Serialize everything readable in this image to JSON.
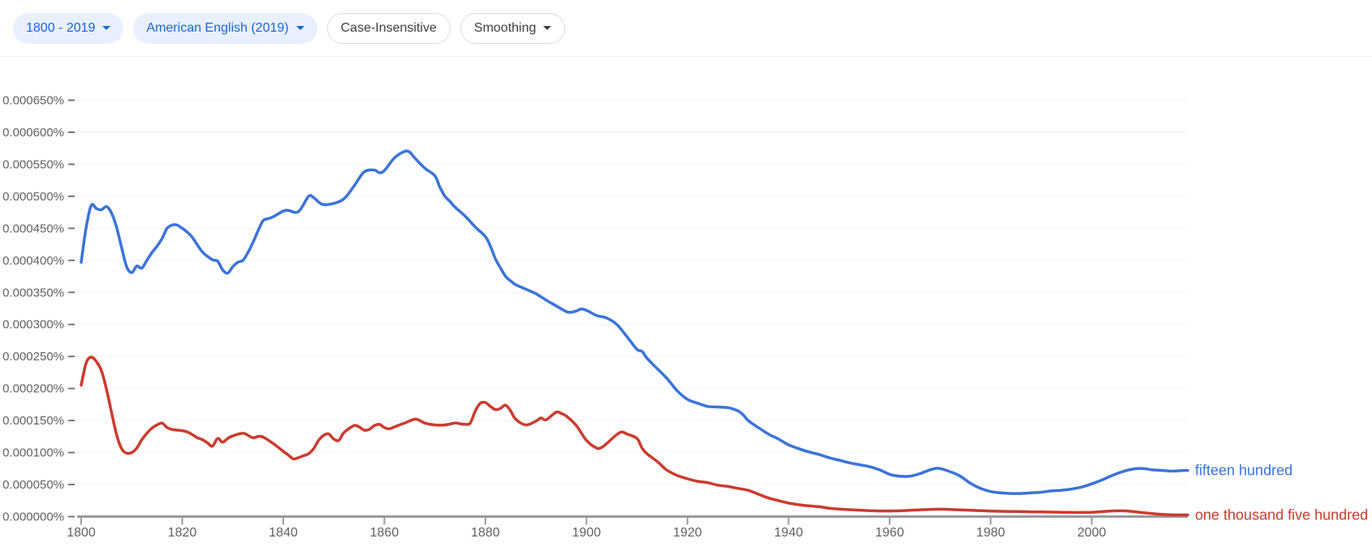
{
  "toolbar": {
    "year_range": {
      "label": "1800 - 2019",
      "has_dropdown": true
    },
    "corpus": {
      "label": "American English (2019)",
      "has_dropdown": true
    },
    "case_sensitivity": {
      "label": "Case-Insensitive",
      "has_dropdown": false
    },
    "smoothing": {
      "label": "Smoothing",
      "has_dropdown": true
    }
  },
  "colors": {
    "series_blue": "#3b73d9",
    "series_red": "#cc3b2e",
    "axis": "#9a9a9a",
    "tick_label": "#616161",
    "gridline": "#f2f2f2",
    "chip_filled_bg": "#e8f0fe",
    "chip_filled_text": "#1967d2",
    "chip_outline": "#dadce0"
  },
  "chart_data": {
    "type": "line",
    "title": "",
    "xlabel": "",
    "ylabel": "",
    "grid": true,
    "legend_position": "line-end-labels-right",
    "x_range": [
      1800,
      2019
    ],
    "x_ticks": [
      1800,
      1820,
      1840,
      1860,
      1880,
      1900,
      1920,
      1940,
      1960,
      1980,
      2000
    ],
    "y_range_percent": [
      0,
      0.00065
    ],
    "y_tick_step_percent": 5e-05,
    "y_tick_labels_bottom_to_top": [
      "0.000000%",
      "0.000050%",
      "0.000100%",
      "0.000150%",
      "0.000200%",
      "0.000250%",
      "0.000300%",
      "0.000350%",
      "0.000400%",
      "0.000450%",
      "0.000500%",
      "0.000550%",
      "0.000600%",
      "0.000650%"
    ],
    "value_unit": "millionths of a percent (value * 1e-6 %)",
    "series": [
      {
        "name": "fifteen hundred",
        "color": "#3b73d9",
        "points": [
          [
            1800,
            397
          ],
          [
            1801,
            452
          ],
          [
            1802,
            486
          ],
          [
            1803,
            481
          ],
          [
            1804,
            479
          ],
          [
            1805,
            484
          ],
          [
            1806,
            474
          ],
          [
            1807,
            452
          ],
          [
            1808,
            420
          ],
          [
            1809,
            390
          ],
          [
            1810,
            381
          ],
          [
            1811,
            391
          ],
          [
            1812,
            388
          ],
          [
            1813,
            400
          ],
          [
            1814,
            412
          ],
          [
            1815,
            422
          ],
          [
            1816,
            434
          ],
          [
            1817,
            450
          ],
          [
            1818,
            455
          ],
          [
            1819,
            455
          ],
          [
            1820,
            450
          ],
          [
            1821,
            444
          ],
          [
            1822,
            436
          ],
          [
            1824,
            413
          ],
          [
            1826,
            401
          ],
          [
            1827,
            399
          ],
          [
            1828,
            385
          ],
          [
            1829,
            380
          ],
          [
            1830,
            390
          ],
          [
            1831,
            397
          ],
          [
            1832,
            400
          ],
          [
            1833,
            412
          ],
          [
            1834,
            428
          ],
          [
            1835,
            446
          ],
          [
            1836,
            462
          ],
          [
            1837,
            465
          ],
          [
            1838,
            468
          ],
          [
            1840,
            477
          ],
          [
            1841,
            478
          ],
          [
            1843,
            476
          ],
          [
            1845,
            500
          ],
          [
            1846,
            498
          ],
          [
            1847,
            491
          ],
          [
            1848,
            487
          ],
          [
            1850,
            489
          ],
          [
            1852,
            496
          ],
          [
            1854,
            516
          ],
          [
            1856,
            538
          ],
          [
            1858,
            541
          ],
          [
            1859,
            537
          ],
          [
            1860,
            540
          ],
          [
            1862,
            560
          ],
          [
            1864,
            570
          ],
          [
            1865,
            569
          ],
          [
            1866,
            560
          ],
          [
            1868,
            544
          ],
          [
            1870,
            532
          ],
          [
            1871,
            514
          ],
          [
            1872,
            500
          ],
          [
            1873,
            492
          ],
          [
            1874,
            483
          ],
          [
            1876,
            469
          ],
          [
            1878,
            452
          ],
          [
            1880,
            437
          ],
          [
            1881,
            422
          ],
          [
            1882,
            402
          ],
          [
            1883,
            388
          ],
          [
            1884,
            375
          ],
          [
            1885,
            368
          ],
          [
            1886,
            362
          ],
          [
            1888,
            355
          ],
          [
            1890,
            348
          ],
          [
            1892,
            338
          ],
          [
            1894,
            329
          ],
          [
            1896,
            320
          ],
          [
            1897,
            319
          ],
          [
            1898,
            321
          ],
          [
            1899,
            324
          ],
          [
            1900,
            322
          ],
          [
            1902,
            314
          ],
          [
            1904,
            310
          ],
          [
            1906,
            300
          ],
          [
            1908,
            281
          ],
          [
            1910,
            261
          ],
          [
            1911,
            258
          ],
          [
            1912,
            247
          ],
          [
            1914,
            231
          ],
          [
            1916,
            215
          ],
          [
            1918,
            196
          ],
          [
            1920,
            183
          ],
          [
            1922,
            177
          ],
          [
            1924,
            172
          ],
          [
            1926,
            171
          ],
          [
            1928,
            170
          ],
          [
            1929,
            168
          ],
          [
            1930,
            165
          ],
          [
            1931,
            159
          ],
          [
            1932,
            150
          ],
          [
            1934,
            139
          ],
          [
            1936,
            129
          ],
          [
            1938,
            121
          ],
          [
            1940,
            112
          ],
          [
            1942,
            106
          ],
          [
            1944,
            101
          ],
          [
            1946,
            97
          ],
          [
            1948,
            92
          ],
          [
            1950,
            88
          ],
          [
            1952,
            84
          ],
          [
            1954,
            81
          ],
          [
            1956,
            78
          ],
          [
            1958,
            73
          ],
          [
            1960,
            66
          ],
          [
            1962,
            63
          ],
          [
            1964,
            63
          ],
          [
            1966,
            67
          ],
          [
            1968,
            73
          ],
          [
            1969,
            75
          ],
          [
            1970,
            75
          ],
          [
            1972,
            70
          ],
          [
            1974,
            63
          ],
          [
            1976,
            52
          ],
          [
            1978,
            44
          ],
          [
            1980,
            39
          ],
          [
            1982,
            37
          ],
          [
            1984,
            36
          ],
          [
            1986,
            36
          ],
          [
            1988,
            37
          ],
          [
            1990,
            38
          ],
          [
            1992,
            40
          ],
          [
            1994,
            41
          ],
          [
            1996,
            43
          ],
          [
            1998,
            46
          ],
          [
            2000,
            51
          ],
          [
            2002,
            57
          ],
          [
            2004,
            64
          ],
          [
            2006,
            70
          ],
          [
            2008,
            74
          ],
          [
            2010,
            75
          ],
          [
            2012,
            73
          ],
          [
            2014,
            72
          ],
          [
            2016,
            71
          ],
          [
            2018,
            72
          ],
          [
            2019,
            72
          ]
        ]
      },
      {
        "name": "one thousand five hundred",
        "color": "#cc3b2e",
        "points": [
          [
            1800,
            205
          ],
          [
            1801,
            240
          ],
          [
            1802,
            249
          ],
          [
            1803,
            242
          ],
          [
            1804,
            228
          ],
          [
            1805,
            199
          ],
          [
            1806,
            163
          ],
          [
            1807,
            128
          ],
          [
            1808,
            106
          ],
          [
            1809,
            99
          ],
          [
            1810,
            100
          ],
          [
            1811,
            107
          ],
          [
            1812,
            120
          ],
          [
            1813,
            130
          ],
          [
            1814,
            138
          ],
          [
            1815,
            143
          ],
          [
            1816,
            146
          ],
          [
            1817,
            139
          ],
          [
            1818,
            136
          ],
          [
            1819,
            135
          ],
          [
            1820,
            134
          ],
          [
            1821,
            132
          ],
          [
            1822,
            128
          ],
          [
            1823,
            123
          ],
          [
            1824,
            120
          ],
          [
            1825,
            115
          ],
          [
            1826,
            110
          ],
          [
            1827,
            122
          ],
          [
            1828,
            116
          ],
          [
            1829,
            122
          ],
          [
            1830,
            126
          ],
          [
            1832,
            130
          ],
          [
            1833,
            127
          ],
          [
            1834,
            123
          ],
          [
            1835,
            125
          ],
          [
            1836,
            124
          ],
          [
            1838,
            114
          ],
          [
            1840,
            102
          ],
          [
            1841,
            96
          ],
          [
            1842,
            90
          ],
          [
            1843,
            92
          ],
          [
            1844,
            95
          ],
          [
            1845,
            98
          ],
          [
            1846,
            106
          ],
          [
            1847,
            119
          ],
          [
            1848,
            127
          ],
          [
            1849,
            129
          ],
          [
            1850,
            121
          ],
          [
            1851,
            119
          ],
          [
            1852,
            131
          ],
          [
            1854,
            142
          ],
          [
            1855,
            140
          ],
          [
            1856,
            135
          ],
          [
            1857,
            136
          ],
          [
            1858,
            142
          ],
          [
            1859,
            144
          ],
          [
            1860,
            139
          ],
          [
            1861,
            137
          ],
          [
            1862,
            140
          ],
          [
            1864,
            146
          ],
          [
            1866,
            152
          ],
          [
            1867,
            150
          ],
          [
            1868,
            146
          ],
          [
            1870,
            143
          ],
          [
            1872,
            143
          ],
          [
            1874,
            146
          ],
          [
            1875,
            145
          ],
          [
            1876,
            144
          ],
          [
            1877,
            146
          ],
          [
            1878,
            165
          ],
          [
            1879,
            177
          ],
          [
            1880,
            178
          ],
          [
            1881,
            172
          ],
          [
            1882,
            167
          ],
          [
            1883,
            169
          ],
          [
            1884,
            174
          ],
          [
            1885,
            165
          ],
          [
            1886,
            152
          ],
          [
            1888,
            143
          ],
          [
            1890,
            149
          ],
          [
            1891,
            154
          ],
          [
            1892,
            151
          ],
          [
            1894,
            163
          ],
          [
            1895,
            161
          ],
          [
            1896,
            157
          ],
          [
            1898,
            142
          ],
          [
            1900,
            119
          ],
          [
            1902,
            107
          ],
          [
            1903,
            108
          ],
          [
            1904,
            114
          ],
          [
            1906,
            128
          ],
          [
            1907,
            132
          ],
          [
            1908,
            129
          ],
          [
            1910,
            122
          ],
          [
            1911,
            107
          ],
          [
            1912,
            98
          ],
          [
            1914,
            86
          ],
          [
            1915,
            79
          ],
          [
            1916,
            72
          ],
          [
            1918,
            64
          ],
          [
            1920,
            59
          ],
          [
            1922,
            55
          ],
          [
            1924,
            53
          ],
          [
            1926,
            49
          ],
          [
            1928,
            47
          ],
          [
            1930,
            44
          ],
          [
            1932,
            41
          ],
          [
            1934,
            35
          ],
          [
            1936,
            29
          ],
          [
            1938,
            25
          ],
          [
            1940,
            21
          ],
          [
            1942,
            18.5
          ],
          [
            1944,
            16.7
          ],
          [
            1946,
            15.5
          ],
          [
            1948,
            13
          ],
          [
            1950,
            11.7
          ],
          [
            1952,
            10.8
          ],
          [
            1954,
            10
          ],
          [
            1956,
            9.3
          ],
          [
            1958,
            8.8
          ],
          [
            1960,
            8.7
          ],
          [
            1962,
            9
          ],
          [
            1964,
            9.8
          ],
          [
            1966,
            10.5
          ],
          [
            1968,
            11.2
          ],
          [
            1970,
            11.5
          ],
          [
            1972,
            11.2
          ],
          [
            1974,
            10.5
          ],
          [
            1976,
            9.8
          ],
          [
            1978,
            9.2
          ],
          [
            1980,
            8.6
          ],
          [
            1982,
            8.2
          ],
          [
            1984,
            8
          ],
          [
            1986,
            7.7
          ],
          [
            1988,
            7.4
          ],
          [
            1990,
            7.2
          ],
          [
            1992,
            7
          ],
          [
            1994,
            6.7
          ],
          [
            1996,
            6.5
          ],
          [
            1998,
            6.4
          ],
          [
            2000,
            6.6
          ],
          [
            2002,
            7.6
          ],
          [
            2004,
            8.8
          ],
          [
            2006,
            9
          ],
          [
            2008,
            8
          ],
          [
            2010,
            6.2
          ],
          [
            2012,
            4.7
          ],
          [
            2014,
            3.4
          ],
          [
            2016,
            2.7
          ],
          [
            2018,
            2.5
          ],
          [
            2019,
            2.5
          ]
        ]
      }
    ]
  }
}
